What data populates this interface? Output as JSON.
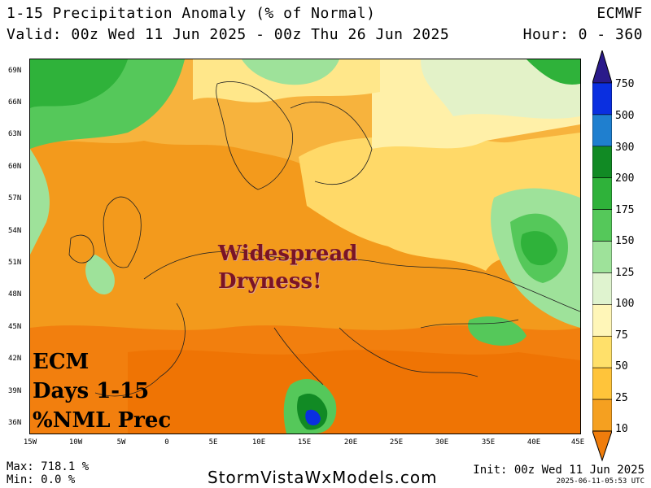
{
  "header": {
    "title": "1-15 Precipitation Anomaly (% of Normal)",
    "model": "ECMWF",
    "valid": "Valid: 00z Wed 11 Jun 2025 - 00z Thu 26 Jun 2025",
    "hour": "Hour: 0 - 360"
  },
  "map": {
    "lat_labels": [
      "69N",
      "66N",
      "63N",
      "60N",
      "57N",
      "54N",
      "51N",
      "48N",
      "45N",
      "42N",
      "39N",
      "36N"
    ],
    "lon_labels": [
      "15W",
      "10W",
      "5W",
      "0",
      "5E",
      "10E",
      "15E",
      "20E",
      "25E",
      "30E",
      "35E",
      "40E",
      "45E"
    ],
    "annotation_dry": [
      "Widespread",
      "Dryness!"
    ],
    "annotation_ecm": [
      "ECM",
      "Days 1-15",
      "%NML Prec"
    ]
  },
  "colorbar": {
    "levels": [
      "750",
      "500",
      "300",
      "200",
      "175",
      "150",
      "125",
      "100",
      "75",
      "50",
      "25",
      "10"
    ],
    "colors": [
      "#1a1aa0",
      "#0a2fe0",
      "#1f7fcf",
      "#118a24",
      "#2fb23a",
      "#55c85a",
      "#9ee29a",
      "#dff3cf",
      "#fff6b8",
      "#ffe06a",
      "#ffc43a",
      "#f5a020",
      "#f07d0c"
    ]
  },
  "footer": {
    "max": "Max: 718.1 %",
    "min": "Min:  0.0 %",
    "site": "StormVistaWxModels.com",
    "init": "Init: 00z Wed 11 Jun 2025",
    "stamp": "2025-06-11-05:53 UTC"
  }
}
